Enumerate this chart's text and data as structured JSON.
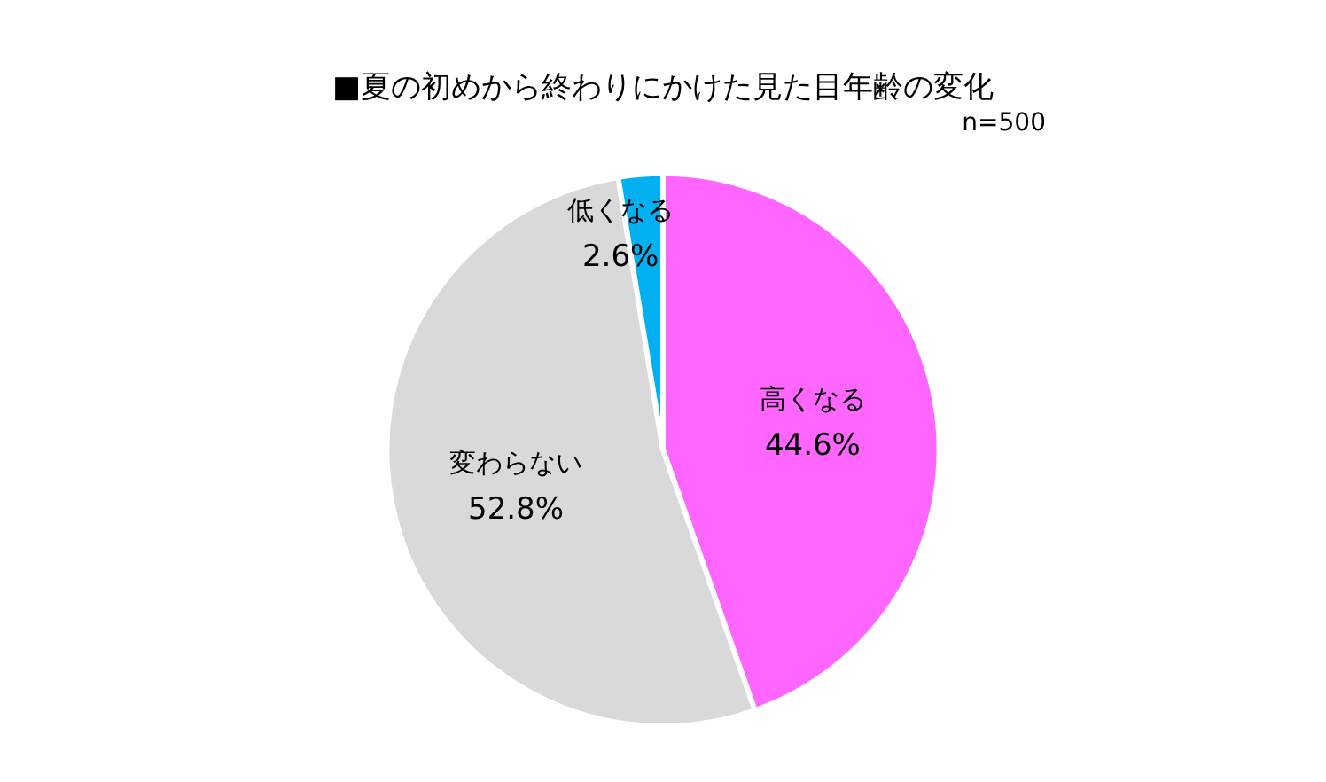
{
  "chart_data": {
    "type": "pie",
    "title": "■夏の初めから終わりにかけた見た目年齢の変化",
    "annotations": [
      "n=500"
    ],
    "categories": [
      "高くなる",
      "変わらない",
      "低くなる"
    ],
    "values": [
      44.6,
      52.8,
      2.6
    ],
    "value_labels": [
      "44.6%",
      "52.8%",
      "2.6%"
    ],
    "colors": [
      "#ff66ff",
      "#d9d9d9",
      "#00b0f0"
    ],
    "legend": false
  }
}
